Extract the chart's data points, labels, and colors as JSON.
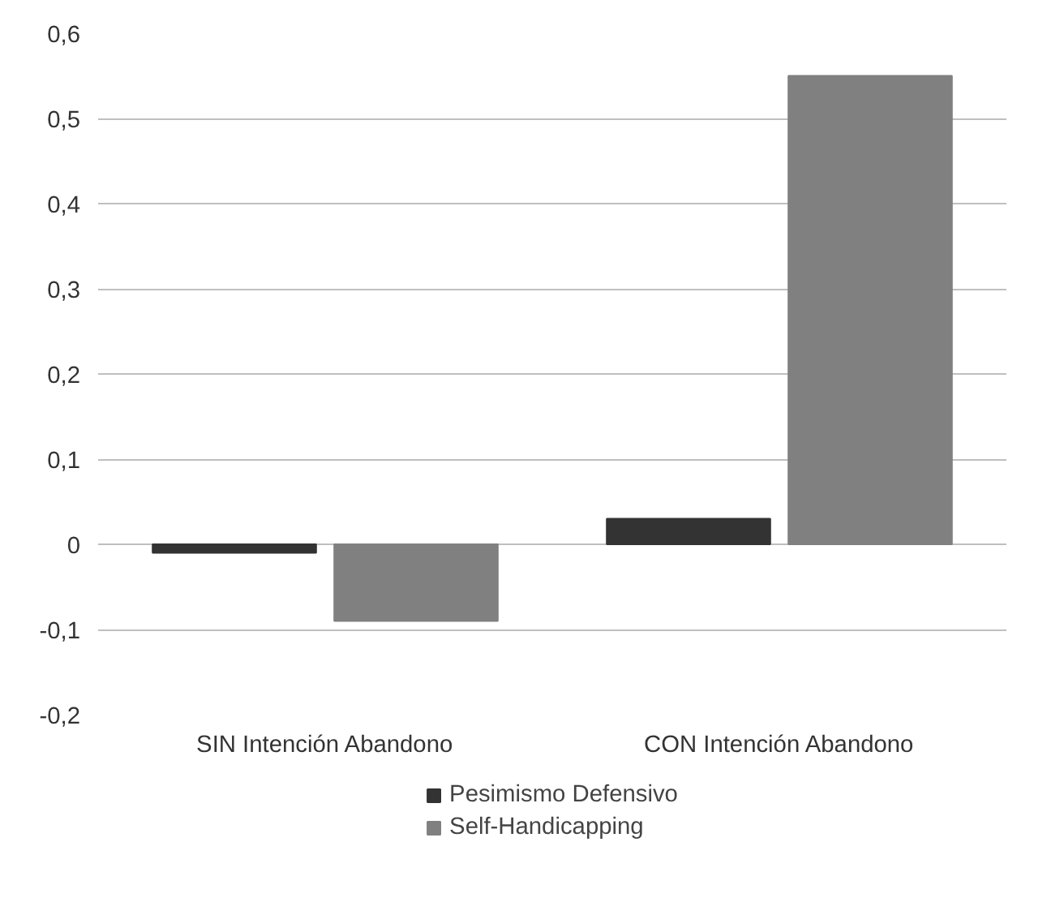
{
  "chart_data": {
    "type": "bar",
    "categories": [
      "SIN Intención Abandono",
      "CON Intención Abandono"
    ],
    "series": [
      {
        "name": "Pesimismo Defensivo",
        "color": "#333333",
        "values": [
          -0.01,
          0.03
        ]
      },
      {
        "name": "Self-Handicapping",
        "color": "#808080",
        "values": [
          -0.09,
          0.55
        ]
      }
    ],
    "ylim": [
      -0.2,
      0.6
    ],
    "yticks": [
      {
        "value": -0.2,
        "label": "-0,2"
      },
      {
        "value": -0.1,
        "label": "-0,1"
      },
      {
        "value": 0,
        "label": "0"
      },
      {
        "value": 0.1,
        "label": "0,1"
      },
      {
        "value": 0.2,
        "label": "0,2"
      },
      {
        "value": 0.3,
        "label": "0,3"
      },
      {
        "value": 0.4,
        "label": "0,4"
      },
      {
        "value": 0.5,
        "label": "0,5"
      },
      {
        "value": 0.6,
        "label": "0,6"
      }
    ],
    "grid": "y",
    "legend": "bottom"
  }
}
